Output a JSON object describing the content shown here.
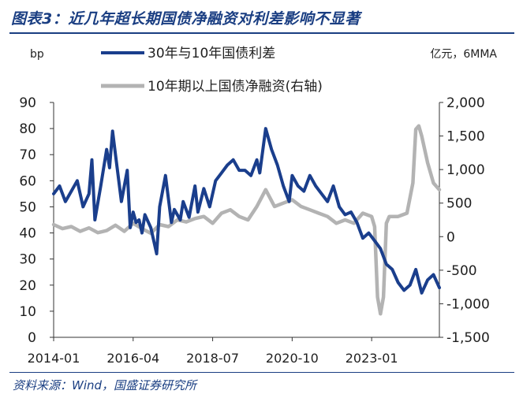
{
  "figure_title": "图表3：近几年超长期国债净融资对利差影响不显著",
  "source": "资料来源：Wind，国盛证券研究所",
  "chart_data": {
    "type": "line",
    "left_unit_label": "bp",
    "right_unit_label": "亿元，6MMA",
    "x_tick_labels": [
      "2014-01",
      "2016-04",
      "2018-07",
      "2020-10",
      "2023-01"
    ],
    "x_range": [
      "2014-01",
      "2024-12"
    ],
    "left_axis": {
      "min": 0,
      "max": 90,
      "ticks": [
        "0",
        "10",
        "20",
        "30",
        "40",
        "50",
        "60",
        "70",
        "80",
        "90"
      ]
    },
    "right_axis": {
      "min": -1500,
      "max": 2000,
      "ticks": [
        "2,000",
        "1,500",
        "1,000",
        "500",
        "0",
        "-500",
        "-1,000",
        "-1,500"
      ]
    },
    "grid": false,
    "legend_placement": "top",
    "series": [
      {
        "name": "30年与10年国债利差",
        "axis": "left",
        "color": "#1a3e8c",
        "x": [
          "2014-01",
          "2014-03",
          "2014-05",
          "2014-07",
          "2014-09",
          "2014-11",
          "2015-01",
          "2015-02",
          "2015-03",
          "2015-05",
          "2015-07",
          "2015-08",
          "2015-09",
          "2015-10",
          "2015-12",
          "2016-02",
          "2016-03",
          "2016-04",
          "2016-05",
          "2016-06",
          "2016-07",
          "2016-08",
          "2016-10",
          "2016-12",
          "2017-01",
          "2017-03",
          "2017-05",
          "2017-06",
          "2017-08",
          "2017-09",
          "2017-11",
          "2018-01",
          "2018-02",
          "2018-04",
          "2018-06",
          "2018-08",
          "2018-10",
          "2018-12",
          "2019-02",
          "2019-04",
          "2019-06",
          "2019-08",
          "2019-10",
          "2019-11",
          "2020-01",
          "2020-03",
          "2020-05",
          "2020-07",
          "2020-09",
          "2020-10",
          "2020-12",
          "2021-02",
          "2021-04",
          "2021-06",
          "2021-08",
          "2021-10",
          "2021-12",
          "2022-02",
          "2022-04",
          "2022-06",
          "2022-08",
          "2022-10",
          "2022-12",
          "2023-02",
          "2023-04",
          "2023-06",
          "2023-08",
          "2023-10",
          "2023-12",
          "2024-02",
          "2024-04",
          "2024-06",
          "2024-08",
          "2024-10",
          "2024-12"
        ],
        "y": [
          55,
          58,
          52,
          56,
          60,
          50,
          55,
          68,
          45,
          58,
          72,
          65,
          79,
          70,
          52,
          64,
          42,
          48,
          44,
          45,
          40,
          47,
          42,
          32,
          50,
          62,
          44,
          49,
          45,
          52,
          46,
          58,
          48,
          57,
          50,
          60,
          63,
          66,
          68,
          64,
          64,
          62,
          68,
          63,
          80,
          72,
          66,
          58,
          52,
          62,
          58,
          56,
          62,
          58,
          55,
          52,
          58,
          50,
          47,
          48,
          44,
          38,
          40,
          37,
          34,
          28,
          26,
          21,
          18,
          20,
          26,
          17,
          22,
          24,
          19
        ]
      },
      {
        "name": "10年期以上国债净融资(右轴)",
        "axis": "right",
        "color": "#b3b3b3",
        "x": [
          "2014-01",
          "2014-04",
          "2014-07",
          "2014-10",
          "2015-01",
          "2015-04",
          "2015-07",
          "2015-10",
          "2016-01",
          "2016-04",
          "2016-07",
          "2016-10",
          "2017-01",
          "2017-04",
          "2017-07",
          "2017-10",
          "2018-01",
          "2018-04",
          "2018-07",
          "2018-10",
          "2019-01",
          "2019-04",
          "2019-07",
          "2019-10",
          "2020-01",
          "2020-04",
          "2020-07",
          "2020-10",
          "2021-01",
          "2021-04",
          "2021-07",
          "2021-10",
          "2022-01",
          "2022-04",
          "2022-07",
          "2022-10",
          "2023-01",
          "2023-02",
          "2023-03",
          "2023-04",
          "2023-05",
          "2023-06",
          "2023-07",
          "2023-10",
          "2024-01",
          "2024-03",
          "2024-04",
          "2024-05",
          "2024-06",
          "2024-08",
          "2024-10",
          "2024-12"
        ],
        "y": [
          180,
          120,
          150,
          80,
          130,
          60,
          90,
          170,
          80,
          200,
          120,
          50,
          180,
          150,
          250,
          220,
          270,
          300,
          200,
          350,
          400,
          300,
          250,
          450,
          700,
          450,
          500,
          550,
          450,
          400,
          350,
          300,
          200,
          250,
          200,
          350,
          300,
          150,
          -900,
          -1150,
          -900,
          200,
          300,
          300,
          350,
          800,
          1600,
          1650,
          1500,
          1100,
          800,
          700
        ]
      }
    ]
  }
}
